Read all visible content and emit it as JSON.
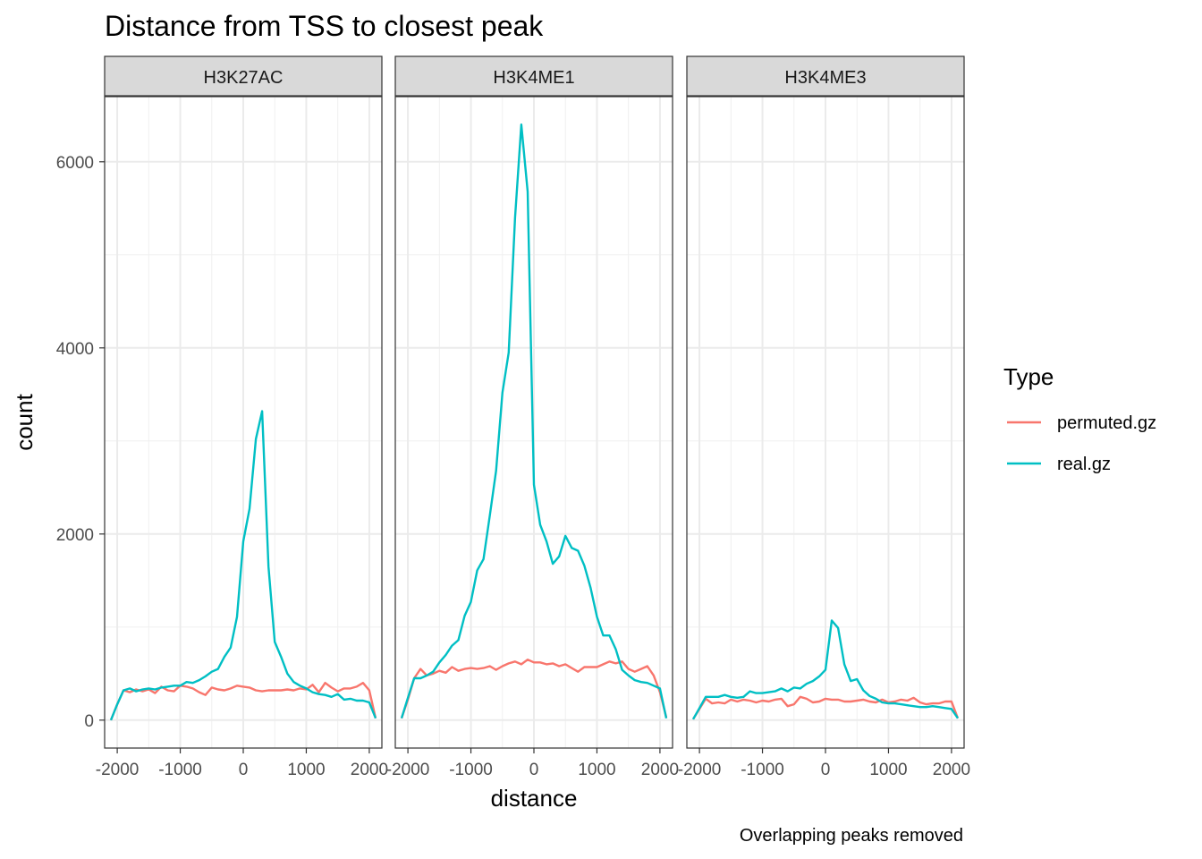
{
  "chart_data": {
    "type": "line",
    "title": "Distance from TSS to closest peak",
    "xlabel": "distance",
    "ylabel": "count",
    "caption": "Overlapping peaks removed",
    "legend": {
      "title": "Type",
      "position": "right"
    },
    "xlim": [
      -2200,
      2200
    ],
    "ylim": [
      -300,
      6700
    ],
    "x_ticks": [
      -2000,
      -1000,
      0,
      1000,
      2000
    ],
    "x_tick_labels": [
      "-2000",
      "-1000",
      "0",
      "1000",
      "2000"
    ],
    "y_ticks": [
      0,
      2000,
      4000,
      6000
    ],
    "y_tick_labels": [
      "0",
      "2000",
      "4000",
      "6000"
    ],
    "grid": true,
    "colors": {
      "permuted.gz": "#F8766D",
      "real.gz": "#00BFC4"
    },
    "x": [
      -2100,
      -2000,
      -1900,
      -1800,
      -1700,
      -1600,
      -1500,
      -1400,
      -1300,
      -1200,
      -1100,
      -1000,
      -900,
      -800,
      -700,
      -600,
      -500,
      -400,
      -300,
      -200,
      -100,
      0,
      100,
      200,
      300,
      400,
      500,
      600,
      700,
      800,
      900,
      1000,
      1100,
      1200,
      1300,
      1400,
      1500,
      1600,
      1700,
      1800,
      1900,
      2000,
      2100
    ],
    "panels": [
      {
        "name": "H3K27AC",
        "series": [
          {
            "name": "permuted.gz",
            "values": [
              0,
              170,
              320,
              300,
              330,
              310,
              330,
              290,
              360,
              320,
              310,
              370,
              360,
              340,
              300,
              270,
              350,
              330,
              320,
              340,
              370,
              360,
              350,
              320,
              310,
              320,
              320,
              320,
              330,
              320,
              340,
              330,
              380,
              300,
              400,
              350,
              310,
              340,
              340,
              360,
              400,
              320,
              20
            ]
          },
          {
            "name": "real.gz",
            "values": [
              0,
              170,
              320,
              340,
              310,
              330,
              340,
              330,
              350,
              360,
              370,
              370,
              410,
              400,
              430,
              470,
              520,
              550,
              680,
              780,
              1110,
              1920,
              2270,
              3020,
              3320,
              1650,
              840,
              680,
              500,
              410,
              370,
              340,
              300,
              280,
              270,
              250,
              280,
              220,
              230,
              210,
              210,
              190,
              20
            ]
          }
        ]
      },
      {
        "name": "H3K4ME1",
        "series": [
          {
            "name": "permuted.gz",
            "values": [
              20,
              220,
              450,
              550,
              480,
              500,
              530,
              510,
              570,
              530,
              550,
              560,
              550,
              560,
              580,
              540,
              580,
              610,
              630,
              600,
              650,
              620,
              620,
              600,
              610,
              580,
              600,
              560,
              520,
              570,
              570,
              570,
              600,
              630,
              610,
              630,
              550,
              520,
              550,
              580,
              480,
              300,
              30
            ]
          },
          {
            "name": "real.gz",
            "values": [
              20,
              240,
              450,
              450,
              480,
              520,
              620,
              700,
              800,
              860,
              1120,
              1270,
              1610,
              1730,
              2200,
              2680,
              3520,
              3950,
              5400,
              6400,
              5680,
              2530,
              2100,
              1920,
              1680,
              1760,
              1980,
              1850,
              1820,
              1660,
              1420,
              1110,
              910,
              910,
              760,
              540,
              480,
              430,
              410,
              400,
              370,
              340,
              20
            ]
          }
        ]
      },
      {
        "name": "H3K4ME3",
        "series": [
          {
            "name": "permuted.gz",
            "values": [
              10,
              120,
              230,
              180,
              190,
              180,
              220,
              200,
              220,
              210,
              190,
              210,
              200,
              220,
              230,
              150,
              170,
              250,
              230,
              190,
              200,
              230,
              220,
              220,
              200,
              200,
              210,
              220,
              200,
              190,
              220,
              190,
              200,
              220,
              210,
              240,
              190,
              170,
              180,
              180,
              200,
              200,
              20
            ]
          },
          {
            "name": "real.gz",
            "values": [
              10,
              130,
              250,
              250,
              250,
              270,
              250,
              240,
              250,
              310,
              290,
              290,
              300,
              310,
              340,
              310,
              350,
              340,
              390,
              420,
              470,
              540,
              1070,
              990,
              600,
              420,
              440,
              320,
              260,
              230,
              190,
              180,
              180,
              170,
              160,
              150,
              140,
              140,
              150,
              140,
              130,
              120,
              20
            ]
          }
        ]
      }
    ]
  }
}
